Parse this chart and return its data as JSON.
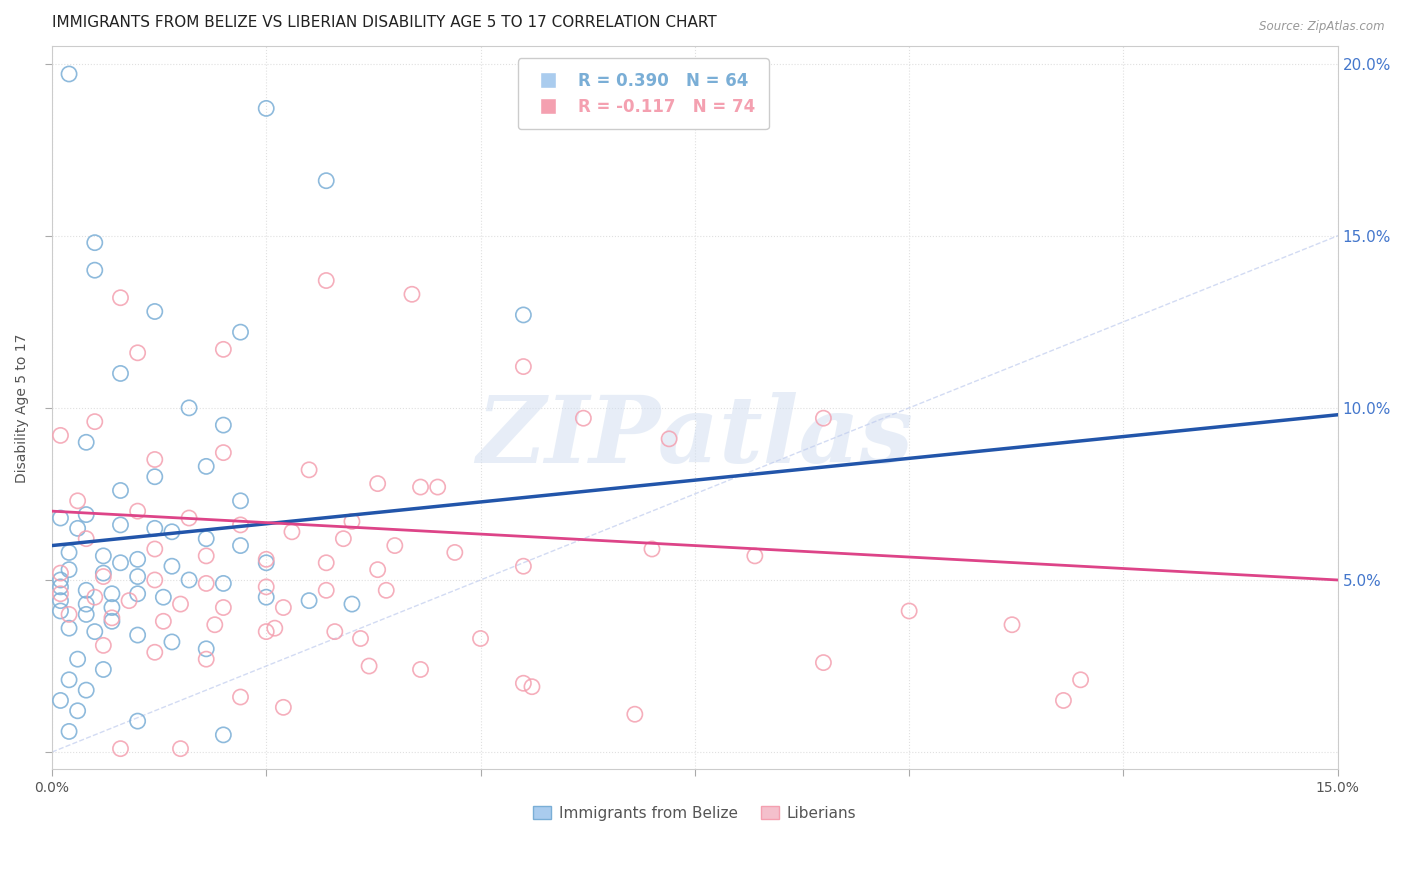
{
  "title": "IMMIGRANTS FROM BELIZE VS LIBERIAN DISABILITY AGE 5 TO 17 CORRELATION CHART",
  "source": "Source: ZipAtlas.com",
  "ylabel": "Disability Age 5 to 17",
  "xlim": [
    0.0,
    0.15
  ],
  "ylim": [
    -0.005,
    0.205
  ],
  "right_yticks": [
    0.05,
    0.1,
    0.15,
    0.2
  ],
  "right_yticklabels": [
    "5.0%",
    "10.0%",
    "15.0%",
    "20.0%"
  ],
  "xticks": [
    0.0,
    0.025,
    0.05,
    0.075,
    0.1,
    0.125,
    0.15
  ],
  "xticklabels": [
    "0.0%",
    "",
    "",
    "",
    "",
    "",
    "15.0%"
  ],
  "legend_r1": "R = 0.390   N = 64",
  "legend_r2": "R = -0.117   N = 74",
  "blue_color": "#7aaed6",
  "pink_color": "#f4a0b0",
  "blue_scatter": [
    [
      0.002,
      0.197
    ],
    [
      0.025,
      0.187
    ],
    [
      0.032,
      0.166
    ],
    [
      0.005,
      0.148
    ],
    [
      0.005,
      0.14
    ],
    [
      0.012,
      0.128
    ],
    [
      0.022,
      0.122
    ],
    [
      0.008,
      0.11
    ],
    [
      0.016,
      0.1
    ],
    [
      0.004,
      0.09
    ],
    [
      0.055,
      0.127
    ],
    [
      0.02,
      0.095
    ],
    [
      0.018,
      0.083
    ],
    [
      0.012,
      0.08
    ],
    [
      0.008,
      0.076
    ],
    [
      0.022,
      0.073
    ],
    [
      0.004,
      0.069
    ],
    [
      0.008,
      0.066
    ],
    [
      0.012,
      0.065
    ],
    [
      0.014,
      0.064
    ],
    [
      0.018,
      0.062
    ],
    [
      0.022,
      0.06
    ],
    [
      0.002,
      0.058
    ],
    [
      0.006,
      0.057
    ],
    [
      0.01,
      0.056
    ],
    [
      0.014,
      0.054
    ],
    [
      0.002,
      0.053
    ],
    [
      0.006,
      0.052
    ],
    [
      0.01,
      0.051
    ],
    [
      0.016,
      0.05
    ],
    [
      0.02,
      0.049
    ],
    [
      0.001,
      0.048
    ],
    [
      0.004,
      0.047
    ],
    [
      0.007,
      0.046
    ],
    [
      0.01,
      0.046
    ],
    [
      0.013,
      0.045
    ],
    [
      0.001,
      0.044
    ],
    [
      0.004,
      0.043
    ],
    [
      0.007,
      0.042
    ],
    [
      0.001,
      0.041
    ],
    [
      0.004,
      0.04
    ],
    [
      0.007,
      0.038
    ],
    [
      0.002,
      0.036
    ],
    [
      0.005,
      0.035
    ],
    [
      0.01,
      0.034
    ],
    [
      0.014,
      0.032
    ],
    [
      0.018,
      0.03
    ],
    [
      0.003,
      0.027
    ],
    [
      0.006,
      0.024
    ],
    [
      0.002,
      0.021
    ],
    [
      0.004,
      0.018
    ],
    [
      0.001,
      0.015
    ],
    [
      0.003,
      0.012
    ],
    [
      0.01,
      0.009
    ],
    [
      0.002,
      0.006
    ],
    [
      0.02,
      0.005
    ],
    [
      0.025,
      0.055
    ],
    [
      0.008,
      0.055
    ],
    [
      0.001,
      0.068
    ],
    [
      0.003,
      0.065
    ],
    [
      0.001,
      0.05
    ],
    [
      0.025,
      0.045
    ],
    [
      0.03,
      0.044
    ],
    [
      0.035,
      0.043
    ]
  ],
  "pink_scatter": [
    [
      0.001,
      0.092
    ],
    [
      0.008,
      0.132
    ],
    [
      0.032,
      0.137
    ],
    [
      0.042,
      0.133
    ],
    [
      0.01,
      0.116
    ],
    [
      0.02,
      0.117
    ],
    [
      0.005,
      0.096
    ],
    [
      0.02,
      0.087
    ],
    [
      0.03,
      0.082
    ],
    [
      0.038,
      0.078
    ],
    [
      0.045,
      0.077
    ],
    [
      0.055,
      0.112
    ],
    [
      0.003,
      0.073
    ],
    [
      0.01,
      0.07
    ],
    [
      0.016,
      0.068
    ],
    [
      0.022,
      0.066
    ],
    [
      0.028,
      0.064
    ],
    [
      0.034,
      0.062
    ],
    [
      0.04,
      0.06
    ],
    [
      0.047,
      0.058
    ],
    [
      0.004,
      0.062
    ],
    [
      0.012,
      0.059
    ],
    [
      0.018,
      0.057
    ],
    [
      0.025,
      0.056
    ],
    [
      0.032,
      0.055
    ],
    [
      0.038,
      0.053
    ],
    [
      0.001,
      0.052
    ],
    [
      0.006,
      0.051
    ],
    [
      0.012,
      0.05
    ],
    [
      0.018,
      0.049
    ],
    [
      0.025,
      0.048
    ],
    [
      0.032,
      0.047
    ],
    [
      0.039,
      0.047
    ],
    [
      0.001,
      0.046
    ],
    [
      0.005,
      0.045
    ],
    [
      0.009,
      0.044
    ],
    [
      0.015,
      0.043
    ],
    [
      0.02,
      0.042
    ],
    [
      0.027,
      0.042
    ],
    [
      0.002,
      0.04
    ],
    [
      0.007,
      0.039
    ],
    [
      0.013,
      0.038
    ],
    [
      0.019,
      0.037
    ],
    [
      0.026,
      0.036
    ],
    [
      0.033,
      0.035
    ],
    [
      0.006,
      0.031
    ],
    [
      0.012,
      0.029
    ],
    [
      0.018,
      0.027
    ],
    [
      0.037,
      0.025
    ],
    [
      0.043,
      0.024
    ],
    [
      0.056,
      0.019
    ],
    [
      0.022,
      0.016
    ],
    [
      0.027,
      0.013
    ],
    [
      0.068,
      0.011
    ],
    [
      0.055,
      0.02
    ],
    [
      0.07,
      0.059
    ],
    [
      0.082,
      0.057
    ],
    [
      0.09,
      0.097
    ],
    [
      0.062,
      0.097
    ],
    [
      0.072,
      0.091
    ],
    [
      0.1,
      0.041
    ],
    [
      0.112,
      0.037
    ],
    [
      0.12,
      0.021
    ],
    [
      0.09,
      0.026
    ],
    [
      0.118,
      0.015
    ],
    [
      0.043,
      0.077
    ],
    [
      0.012,
      0.085
    ],
    [
      0.035,
      0.067
    ],
    [
      0.025,
      0.035
    ],
    [
      0.05,
      0.033
    ],
    [
      0.036,
      0.033
    ],
    [
      0.055,
      0.054
    ],
    [
      0.008,
      0.001
    ],
    [
      0.015,
      0.001
    ]
  ],
  "blue_line": [
    [
      0.0,
      0.06
    ],
    [
      0.15,
      0.098
    ]
  ],
  "pink_line": [
    [
      0.0,
      0.07
    ],
    [
      0.15,
      0.05
    ]
  ],
  "diag_line": [
    [
      0.0,
      0.0
    ],
    [
      0.2,
      0.2
    ]
  ],
  "background_color": "#ffffff",
  "grid_color": "#e0e0e0",
  "watermark_text": "ZIPatlas",
  "title_fontsize": 11,
  "axis_label_fontsize": 10,
  "tick_fontsize": 10
}
